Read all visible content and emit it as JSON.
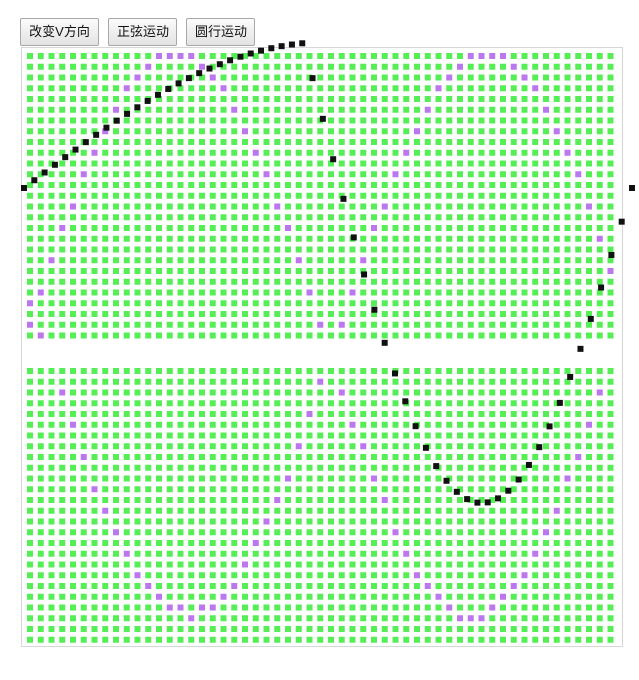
{
  "toolbar": {
    "buttons": [
      {
        "key": "toggle_v",
        "label": "改变V方向"
      },
      {
        "key": "sine",
        "label": "正弦运动"
      },
      {
        "key": "circle",
        "label": "圆行运动"
      }
    ]
  },
  "canvas": {
    "colors": {
      "grid": "#55ee55",
      "path": "#bb77ee",
      "ball": "#111111",
      "border": "#d6d6d6"
    }
  }
}
